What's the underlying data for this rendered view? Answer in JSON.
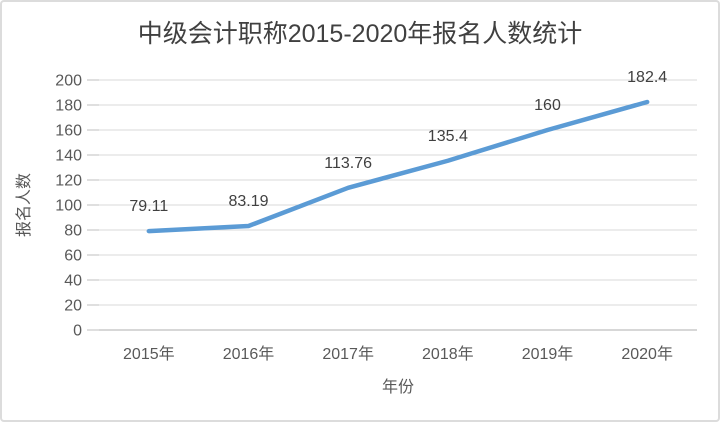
{
  "chart_data": {
    "type": "line",
    "title": "中级会计职称2015-2020年报名人数统计",
    "xlabel": "年份",
    "ylabel": "报名人数",
    "categories": [
      "2015年",
      "2016年",
      "2017年",
      "2018年",
      "2019年",
      "2020年"
    ],
    "values": [
      79.11,
      83.19,
      113.76,
      135.4,
      160,
      182.4
    ],
    "data_labels": [
      "79.11",
      "83.19",
      "113.76",
      "135.4",
      "160",
      "182.4"
    ],
    "ylim": [
      0,
      200
    ],
    "yticks": [
      0,
      20,
      40,
      60,
      80,
      100,
      120,
      140,
      160,
      180,
      200
    ],
    "grid": true,
    "legend": false,
    "colors": {
      "line": "#5B9BD5",
      "gridline": "#D9D9D9",
      "axis": "#BFBFBF",
      "tick_label": "#595959",
      "data_label": "#404040",
      "title": "#404040"
    }
  }
}
